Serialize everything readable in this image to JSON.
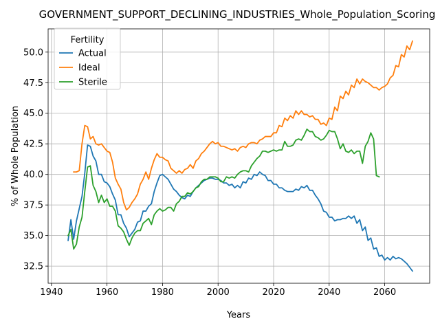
{
  "chart_data": {
    "type": "line",
    "title": "GOVERNMENT_SUPPORT_DECLINING_INDUSTRIES_Whole_Population_Scoring",
    "xlabel": "Years",
    "ylabel": "% of Whole Population",
    "xlim": [
      1938.8,
      2076.2
    ],
    "ylim": [
      31.1,
      51.9
    ],
    "xticks": [
      1940,
      1960,
      1980,
      2000,
      2020,
      2040,
      2060
    ],
    "yticks": [
      32.5,
      35.0,
      37.5,
      40.0,
      42.5,
      45.0,
      47.5,
      50.0
    ],
    "ytick_labels": [
      "32.5",
      "35.0",
      "37.5",
      "40.0",
      "42.5",
      "45.0",
      "47.5",
      "50.0"
    ],
    "grid": true,
    "legend": {
      "title": "Fertility",
      "placement": "top-left"
    },
    "series": [
      {
        "name": "Actual",
        "color": "#1f77b4",
        "x": [
          1946,
          1947,
          1948,
          1949,
          1950,
          1951,
          1952,
          1953,
          1954,
          1955,
          1956,
          1957,
          1958,
          1959,
          1960,
          1961,
          1962,
          1963,
          1964,
          1965,
          1966,
          1967,
          1968,
          1969,
          1970,
          1971,
          1972,
          1973,
          1974,
          1975,
          1976,
          1977,
          1978,
          1979,
          1980,
          1981,
          1982,
          1983,
          1984,
          1985,
          1986,
          1987,
          1988,
          1989,
          1990,
          1991,
          1992,
          1993,
          1994,
          1995,
          1996,
          1997,
          1998,
          1999,
          2000,
          2001,
          2002,
          2003,
          2004,
          2005,
          2006,
          2007,
          2008,
          2009,
          2010,
          2011,
          2012,
          2013,
          2014,
          2015,
          2016,
          2017,
          2018,
          2019,
          2020,
          2021,
          2022,
          2023,
          2024,
          2025,
          2026,
          2027,
          2028,
          2029,
          2030,
          2031,
          2032,
          2033,
          2034,
          2035,
          2036,
          2037,
          2038,
          2039,
          2040,
          2041,
          2042,
          2043,
          2044,
          2045,
          2046,
          2047,
          2048,
          2049,
          2050,
          2051,
          2052,
          2053,
          2054,
          2055,
          2056,
          2057,
          2058,
          2059,
          2060,
          2061,
          2062,
          2063,
          2064,
          2065,
          2066,
          2067,
          2068,
          2069,
          2070
        ],
        "y": [
          34.6,
          36.3,
          34.7,
          36.2,
          37.2,
          38.2,
          40.1,
          42.4,
          42.3,
          41.5,
          41.1,
          40.0,
          40.0,
          39.4,
          39.3,
          39.0,
          38.4,
          37.9,
          36.7,
          36.7,
          36.0,
          35.6,
          34.9,
          35.2,
          35.5,
          36.1,
          36.2,
          37.0,
          37.0,
          37.4,
          37.6,
          38.6,
          39.3,
          39.9,
          40.0,
          39.8,
          39.6,
          39.2,
          38.8,
          38.6,
          38.3,
          38.1,
          38.0,
          38.3,
          38.2,
          38.6,
          38.9,
          39.1,
          39.3,
          39.5,
          39.6,
          39.7,
          39.7,
          39.6,
          39.6,
          39.5,
          39.3,
          39.3,
          39.1,
          39.2,
          38.9,
          39.1,
          38.9,
          39.4,
          39.3,
          39.7,
          39.6,
          40.0,
          39.9,
          40.2,
          40.0,
          39.9,
          39.5,
          39.5,
          39.2,
          39.2,
          38.9,
          38.9,
          38.7,
          38.6,
          38.6,
          38.6,
          38.8,
          38.7,
          39.0,
          38.9,
          39.1,
          38.7,
          38.7,
          38.3,
          38.0,
          37.6,
          37.0,
          36.9,
          36.5,
          36.5,
          36.2,
          36.3,
          36.3,
          36.4,
          36.4,
          36.6,
          36.4,
          36.6,
          36.0,
          36.3,
          35.4,
          35.7,
          34.6,
          34.8,
          33.9,
          34.0,
          33.3,
          33.4,
          33.0,
          33.2,
          33.0,
          33.3,
          33.1,
          33.2,
          33.1,
          32.9,
          32.7,
          32.4,
          32.1
        ]
      },
      {
        "name": "Ideal",
        "color": "#ff7f0e",
        "x": [
          1948,
          1949,
          1950,
          1951,
          1952,
          1953,
          1954,
          1955,
          1956,
          1957,
          1958,
          1959,
          1960,
          1961,
          1962,
          1963,
          1964,
          1965,
          1966,
          1967,
          1968,
          1969,
          1970,
          1971,
          1972,
          1973,
          1974,
          1975,
          1976,
          1977,
          1978,
          1979,
          1980,
          1981,
          1982,
          1983,
          1984,
          1985,
          1986,
          1987,
          1988,
          1989,
          1990,
          1991,
          1992,
          1993,
          1994,
          1995,
          1996,
          1997,
          1998,
          1999,
          2000,
          2001,
          2002,
          2003,
          2004,
          2005,
          2006,
          2007,
          2008,
          2009,
          2010,
          2011,
          2012,
          2013,
          2014,
          2015,
          2016,
          2017,
          2018,
          2019,
          2020,
          2021,
          2022,
          2023,
          2024,
          2025,
          2026,
          2027,
          2028,
          2029,
          2030,
          2031,
          2032,
          2033,
          2034,
          2035,
          2036,
          2037,
          2038,
          2039,
          2040,
          2041,
          2042,
          2043,
          2044,
          2045,
          2046,
          2047,
          2048,
          2049,
          2050,
          2051,
          2052,
          2053,
          2054,
          2055,
          2056,
          2057,
          2058,
          2059,
          2060,
          2061,
          2062,
          2063,
          2064,
          2065,
          2066,
          2067,
          2068,
          2069,
          2070
        ],
        "y": [
          40.2,
          40.2,
          40.3,
          42.5,
          44.0,
          43.9,
          42.9,
          43.1,
          42.5,
          42.4,
          42.5,
          42.2,
          41.9,
          41.8,
          41.0,
          39.7,
          39.2,
          38.8,
          37.7,
          37.1,
          37.3,
          37.7,
          38.0,
          38.4,
          39.2,
          39.6,
          40.2,
          39.6,
          40.5,
          41.2,
          41.7,
          41.4,
          41.4,
          41.2,
          41.1,
          40.5,
          40.3,
          40.1,
          40.3,
          40.1,
          40.4,
          40.5,
          40.8,
          40.5,
          41.1,
          41.3,
          41.7,
          41.9,
          42.2,
          42.5,
          42.7,
          42.5,
          42.6,
          42.3,
          42.3,
          42.2,
          42.1,
          42.0,
          42.1,
          41.9,
          42.2,
          42.3,
          42.2,
          42.5,
          42.6,
          42.6,
          42.5,
          42.8,
          42.9,
          43.1,
          43.1,
          43.1,
          43.4,
          43.4,
          44.0,
          43.9,
          44.6,
          44.4,
          44.8,
          44.6,
          45.2,
          44.9,
          45.2,
          44.9,
          44.9,
          44.7,
          44.8,
          44.5,
          44.5,
          44.1,
          44.2,
          44.0,
          44.6,
          44.5,
          45.5,
          45.2,
          46.4,
          46.2,
          46.8,
          46.5,
          47.3,
          47.1,
          47.8,
          47.4,
          47.8,
          47.6,
          47.5,
          47.3,
          47.1,
          47.1,
          46.9,
          47.1,
          47.2,
          47.4,
          47.9,
          48.1,
          48.9,
          48.8,
          49.8,
          49.6,
          50.5,
          50.2,
          50.9
        ]
      },
      {
        "name": "Sterile",
        "color": "#2ca02c",
        "x": [
          1946,
          1947,
          1948,
          1949,
          1950,
          1951,
          1952,
          1953,
          1954,
          1955,
          1956,
          1957,
          1958,
          1959,
          1960,
          1961,
          1962,
          1963,
          1964,
          1965,
          1966,
          1967,
          1968,
          1969,
          1970,
          1971,
          1972,
          1973,
          1974,
          1975,
          1976,
          1977,
          1978,
          1979,
          1980,
          1981,
          1982,
          1983,
          1984,
          1985,
          1986,
          1987,
          1988,
          1989,
          1990,
          1991,
          1992,
          1993,
          1994,
          1995,
          1996,
          1997,
          1998,
          1999,
          2000,
          2001,
          2002,
          2003,
          2004,
          2005,
          2006,
          2007,
          2008,
          2009,
          2010,
          2011,
          2012,
          2013,
          2014,
          2015,
          2016,
          2017,
          2018,
          2019,
          2020,
          2021,
          2022,
          2023,
          2024,
          2025,
          2026,
          2027,
          2028,
          2029,
          2030,
          2031,
          2032,
          2033,
          2034,
          2035,
          2036,
          2037,
          2038,
          2039,
          2040,
          2041,
          2042,
          2043,
          2044,
          2045,
          2046,
          2047,
          2048,
          2049,
          2050,
          2051,
          2052,
          2053,
          2054,
          2055,
          2056,
          2057,
          2058
        ],
        "y": [
          35.0,
          35.5,
          33.9,
          34.3,
          35.7,
          36.5,
          38.6,
          40.6,
          40.7,
          39.1,
          38.6,
          37.7,
          38.3,
          37.7,
          38.0,
          37.4,
          37.4,
          37.0,
          35.8,
          35.6,
          35.3,
          34.7,
          34.2,
          34.8,
          35.2,
          35.4,
          35.4,
          36.0,
          36.2,
          36.4,
          35.9,
          36.7,
          37.0,
          37.2,
          37.0,
          37.1,
          37.3,
          37.3,
          37.0,
          37.6,
          37.8,
          38.2,
          38.2,
          38.5,
          38.4,
          38.6,
          38.9,
          39.0,
          39.4,
          39.6,
          39.6,
          39.8,
          39.8,
          39.8,
          39.7,
          39.4,
          39.4,
          39.8,
          39.7,
          39.8,
          39.7,
          40.0,
          40.2,
          40.3,
          40.3,
          40.2,
          40.7,
          41.0,
          41.3,
          41.5,
          41.9,
          41.9,
          41.8,
          41.9,
          42.0,
          41.9,
          42.0,
          42.0,
          42.7,
          42.3,
          42.3,
          42.4,
          42.8,
          42.9,
          42.8,
          43.2,
          43.7,
          43.5,
          43.5,
          43.1,
          43.0,
          42.8,
          42.9,
          43.2,
          43.6,
          43.5,
          43.5,
          42.9,
          42.1,
          42.5,
          41.9,
          41.8,
          42.0,
          41.7,
          41.9,
          41.9,
          40.9,
          42.3,
          42.7,
          43.4,
          42.9,
          39.9,
          39.8
        ]
      }
    ]
  }
}
